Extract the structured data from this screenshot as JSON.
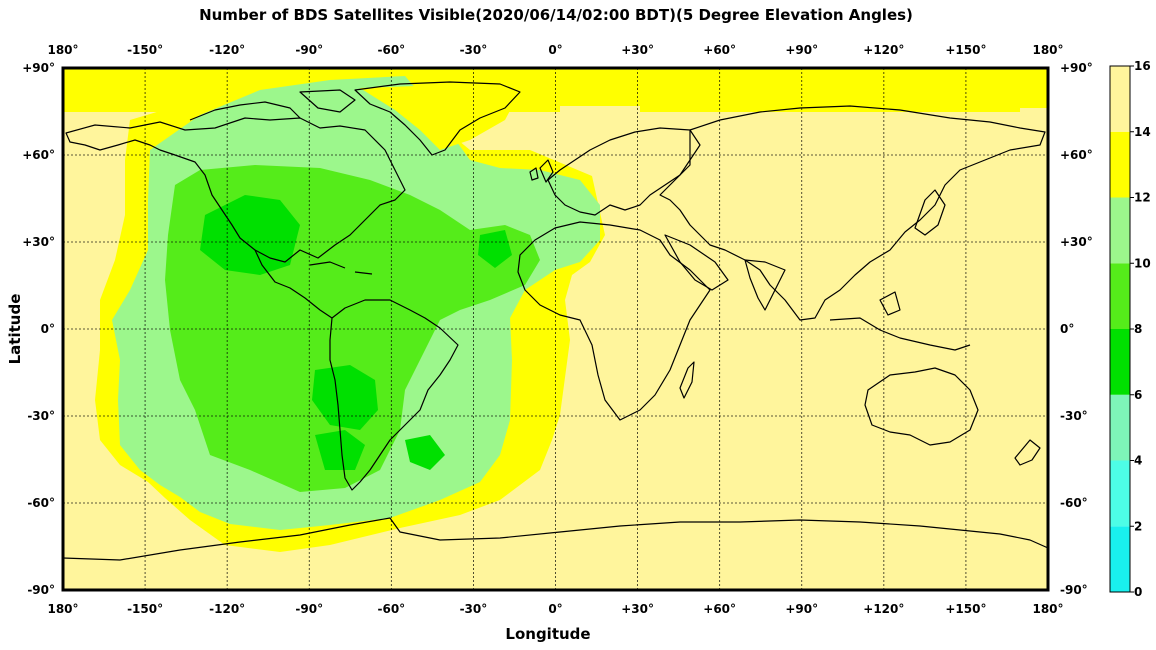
{
  "title": "Number of BDS Satellites Visible(2020/06/14/02:00 BDT)(5 Degree Elevation Angles)",
  "xlabel": "Longitude",
  "ylabel": "Latitude",
  "lon_ticks": [
    "180°",
    "-150°",
    "-120°",
    "-90°",
    "-60°",
    "-30°",
    "0°",
    "+30°",
    "+60°",
    "+90°",
    "+120°",
    "+150°",
    "180°"
  ],
  "lat_ticks": [
    "+90°",
    "+60°",
    "+30°",
    "0°",
    "-30°",
    "-60°",
    "-90°"
  ],
  "colorbar": {
    "ticks": [
      "0",
      "2",
      "4",
      "6",
      "8",
      "10",
      "12",
      "14",
      "16"
    ],
    "colors": [
      "#00e5ee",
      "#19f0ee",
      "#4dfde6",
      "#7ef5b8",
      "#00e000",
      "#55ec1a",
      "#9cf78c",
      "#ffff00",
      "#fff59c"
    ]
  },
  "chart_data": {
    "type": "heatmap",
    "title": "Number of BDS Satellites Visible(2020/06/14/02:00 BDT)(5 Degree Elevation Angles)",
    "xlabel": "Longitude",
    "ylabel": "Latitude",
    "xlim": [
      -180,
      180
    ],
    "ylim": [
      -90,
      90
    ],
    "levels": [
      0,
      2,
      4,
      6,
      8,
      10,
      12,
      14,
      16
    ],
    "grid": true
  }
}
